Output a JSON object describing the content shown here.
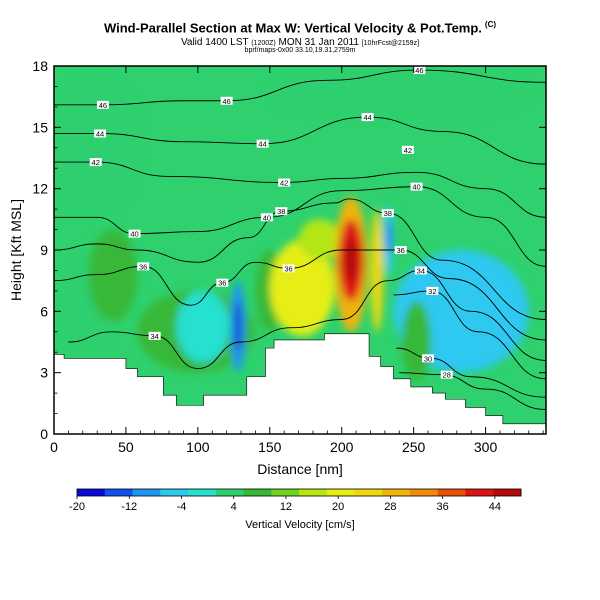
{
  "header": {
    "title_main": "Wind-Parallel Section at Max W: Vertical Velocity & Pot.Temp.",
    "title_mark": "(C)",
    "valid_prefix": "Valid 1400 LST",
    "valid_utc": "(1200Z)",
    "valid_date": "MON 31 Jan 2011",
    "valid_suffix": "[10hrFcst@2159z]",
    "source_line": "bprf/maps-0x00 33.10,19.31,2759m"
  },
  "colors": {
    "terrain": "#ffffff",
    "contour": "#000000",
    "background_field": "#2ed16d"
  },
  "chart_data": {
    "type": "heatmap",
    "title": "Wind-Parallel Section at Max W: Vertical Velocity & Pot.Temp.",
    "xlabel": "Distance [nm]",
    "ylabel": "Height [Kft MSL]",
    "xlim": [
      0,
      342
    ],
    "ylim": [
      0,
      18
    ],
    "xticks": [
      0,
      50,
      100,
      150,
      200,
      250,
      300
    ],
    "yticks": [
      0,
      3,
      6,
      9,
      12,
      15,
      18
    ],
    "colorbar": {
      "label": "Vertical Velocity [cm/s]",
      "min": -20,
      "max": 48,
      "tick_values": [
        -20,
        -12,
        -4,
        4,
        12,
        20,
        28,
        36,
        44
      ],
      "tick_labels": [
        "-20",
        "-12",
        "-4",
        "4",
        "12",
        "20",
        "28",
        "36",
        "44"
      ],
      "colors": [
        "#0a0ad8",
        "#1450f0",
        "#1e96f0",
        "#2dc8f0",
        "#28e0d0",
        "#2ecf6e",
        "#38b838",
        "#6ed21e",
        "#b4e614",
        "#e6ee14",
        "#f0d810",
        "#f0b40c",
        "#f08c0a",
        "#e8500a",
        "#dc1414",
        "#b40a0a"
      ]
    },
    "terrain_profile": {
      "x": [
        0,
        7,
        7,
        50,
        50,
        58,
        58,
        76,
        76,
        85,
        85,
        104,
        104,
        119,
        119,
        134,
        134,
        147,
        147,
        153,
        153,
        188,
        188,
        219,
        219,
        227,
        227,
        236,
        236,
        248,
        248,
        263,
        263,
        272,
        272,
        286,
        286,
        300,
        300,
        312,
        312,
        324,
        324,
        342
      ],
      "height": [
        3.9,
        3.9,
        3.7,
        3.7,
        3.2,
        3.2,
        2.8,
        2.8,
        1.9,
        1.9,
        1.4,
        1.4,
        1.9,
        1.9,
        1.9,
        1.9,
        2.8,
        2.8,
        4.2,
        4.2,
        4.6,
        4.6,
        4.9,
        4.9,
        3.8,
        3.8,
        3.3,
        3.3,
        2.7,
        2.7,
        2.3,
        2.3,
        2.0,
        2.0,
        1.7,
        1.7,
        1.3,
        1.3,
        0.9,
        0.9,
        0.5,
        0.5,
        0.5,
        0.5
      ]
    },
    "vertical_velocity_cells": [
      {
        "x": [
          8,
          42
        ],
        "y": [
          3.9,
          8.8
        ],
        "w": 3
      },
      {
        "x": [
          24,
          58
        ],
        "y": [
          5.5,
          10
        ],
        "w": 8
      },
      {
        "x": [
          0,
          60
        ],
        "y": [
          11,
          17.5
        ],
        "w": 2
      },
      {
        "x": [
          58,
          140
        ],
        "y": [
          3,
          7
        ],
        "w": 6
      },
      {
        "x": [
          85,
          122
        ],
        "y": [
          3.5,
          7
        ],
        "w": -3
      },
      {
        "x": [
          123,
          133
        ],
        "y": [
          3,
          7.5
        ],
        "w": -10
      },
      {
        "x": [
          126,
          130
        ],
        "y": [
          4,
          6.5
        ],
        "w": -16
      },
      {
        "x": [
          140,
          160
        ],
        "y": [
          5,
          9
        ],
        "w": 9
      },
      {
        "x": [
          150,
          195
        ],
        "y": [
          4.8,
          9.5
        ],
        "w": 21
      },
      {
        "x": [
          170,
          200
        ],
        "y": [
          8.5,
          10.5
        ],
        "w": 15
      },
      {
        "x": [
          195,
          218
        ],
        "y": [
          5,
          11.6
        ],
        "w": 30
      },
      {
        "x": [
          198,
          215
        ],
        "y": [
          6.5,
          10.5
        ],
        "w": 40
      },
      {
        "x": [
          202,
          211
        ],
        "y": [
          7.5,
          9.5
        ],
        "w": 46
      },
      {
        "x": [
          220,
          229
        ],
        "y": [
          5,
          11
        ],
        "w": 26
      },
      {
        "x": [
          229,
          236
        ],
        "y": [
          7.8,
          11.2
        ],
        "w": -6
      },
      {
        "x": [
          232,
          234
        ],
        "y": [
          8.8,
          10.4
        ],
        "w": -14
      },
      {
        "x": [
          236,
          330
        ],
        "y": [
          3,
          9
        ],
        "w": -4
      },
      {
        "x": [
          242,
          262
        ],
        "y": [
          2.6,
          6.5
        ],
        "w": 8
      },
      {
        "x": [
          150,
          330
        ],
        "y": [
          15.5,
          17.8
        ],
        "w": 2
      }
    ],
    "potential_temperature_labels": [
      {
        "x": 120,
        "y": 16.3,
        "label": "46"
      },
      {
        "x": 34,
        "y": 16.1,
        "label": "46"
      },
      {
        "x": 32,
        "y": 14.7,
        "label": "44"
      },
      {
        "x": 29,
        "y": 13.3,
        "label": "42"
      },
      {
        "x": 145,
        "y": 14.2,
        "label": "44"
      },
      {
        "x": 246,
        "y": 13.9,
        "label": "42"
      },
      {
        "x": 254,
        "y": 17.8,
        "label": "46"
      },
      {
        "x": 218,
        "y": 15.5,
        "label": "44"
      },
      {
        "x": 160,
        "y": 12.3,
        "label": "42"
      },
      {
        "x": 252,
        "y": 12.1,
        "label": "40"
      },
      {
        "x": 56,
        "y": 9.8,
        "label": "40"
      },
      {
        "x": 148,
        "y": 10.6,
        "label": "40"
      },
      {
        "x": 158,
        "y": 10.9,
        "label": "38"
      },
      {
        "x": 232,
        "y": 10.8,
        "label": "38"
      },
      {
        "x": 62,
        "y": 8.2,
        "label": "36"
      },
      {
        "x": 241,
        "y": 9.0,
        "label": "36"
      },
      {
        "x": 117,
        "y": 7.4,
        "label": "36"
      },
      {
        "x": 163,
        "y": 8.1,
        "label": "36"
      },
      {
        "x": 255,
        "y": 8.0,
        "label": "34"
      },
      {
        "x": 70,
        "y": 4.8,
        "label": "34"
      },
      {
        "x": 263,
        "y": 7.0,
        "label": "32"
      },
      {
        "x": 260,
        "y": 3.7,
        "label": "30"
      },
      {
        "x": 273,
        "y": 2.9,
        "label": "28"
      }
    ],
    "potential_temperature_isentropes": [
      {
        "label": "28",
        "x": [
          240,
          270,
          300,
          342
        ],
        "y": [
          3.0,
          2.9,
          2.2,
          1.2
        ]
      },
      {
        "label": "30",
        "x": [
          238,
          262,
          290,
          342
        ],
        "y": [
          4.2,
          3.7,
          2.8,
          1.8
        ]
      },
      {
        "label": "32",
        "x": [
          236,
          262,
          295,
          342
        ],
        "y": [
          6.8,
          7.0,
          5.0,
          2.7
        ]
      },
      {
        "label": "34",
        "x": [
          10,
          40,
          70,
          100,
          130,
          165,
          200,
          232,
          255,
          290,
          342
        ],
        "y": [
          4.5,
          5.0,
          4.8,
          3.2,
          4.5,
          5.2,
          5.6,
          7.5,
          8.0,
          6.0,
          3.6
        ]
      },
      {
        "label": "36",
        "x": [
          0,
          30,
          62,
          95,
          117,
          140,
          163,
          200,
          241,
          275,
          342
        ],
        "y": [
          7.5,
          7.8,
          8.2,
          6.3,
          7.4,
          8.4,
          8.1,
          9.0,
          9.0,
          7.6,
          4.6
        ]
      },
      {
        "label": "38",
        "x": [
          0,
          30,
          58,
          100,
          135,
          158,
          195,
          205,
          232,
          270,
          342
        ],
        "y": [
          9.0,
          9.3,
          9.0,
          8.4,
          9.6,
          10.9,
          11.3,
          11.5,
          10.8,
          8.5,
          5.6
        ]
      },
      {
        "label": "40",
        "x": [
          0,
          30,
          56,
          100,
          148,
          200,
          252,
          300,
          342
        ],
        "y": [
          10.6,
          10.6,
          9.8,
          9.9,
          10.6,
          11.9,
          12.1,
          10.6,
          8.2
        ]
      },
      {
        "label": "42",
        "x": [
          0,
          29,
          80,
          160,
          200,
          252,
          300,
          342
        ],
        "y": [
          13.3,
          13.3,
          12.6,
          12.3,
          12.5,
          12.8,
          12.0,
          10.6
        ]
      },
      {
        "label": "44",
        "x": [
          0,
          32,
          90,
          145,
          218,
          270,
          342
        ],
        "y": [
          14.7,
          14.7,
          14.3,
          14.2,
          15.5,
          14.8,
          13.2
        ]
      },
      {
        "label": "46",
        "x": [
          0,
          34,
          90,
          120,
          190,
          254,
          342
        ],
        "y": [
          16.1,
          16.1,
          16.3,
          16.3,
          17.3,
          17.8,
          17.2
        ]
      }
    ]
  }
}
